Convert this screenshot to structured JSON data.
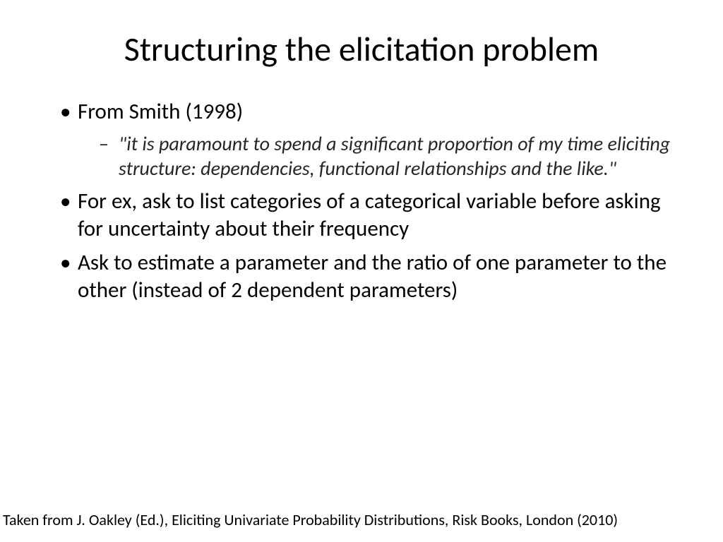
{
  "slide": {
    "title": "Structuring the elicitation problem",
    "bullets": [
      {
        "text": "From Smith (1998)",
        "sub": "\"it is paramount to spend a significant proportion of my time eliciting structure: dependencies, functional relationships and the like.\""
      },
      {
        "text": "For ex, ask to list categories of a categorical variable before asking for uncertainty about their frequency"
      },
      {
        "text": "Ask to estimate a parameter and the ratio of one parameter to the other (instead of 2 dependent parameters)"
      }
    ],
    "footer": "Taken from J. Oakley (Ed.), Eliciting Univariate Probability Distributions, Risk Books, London (2010)"
  },
  "style": {
    "background_color": "#ffffff",
    "text_color": "#000000",
    "sub_text_color": "#262626",
    "title_fontsize": 48,
    "bullet_fontsize": 31,
    "sub_fontsize": 28,
    "footer_fontsize": 22,
    "font_family": "Calibri"
  }
}
